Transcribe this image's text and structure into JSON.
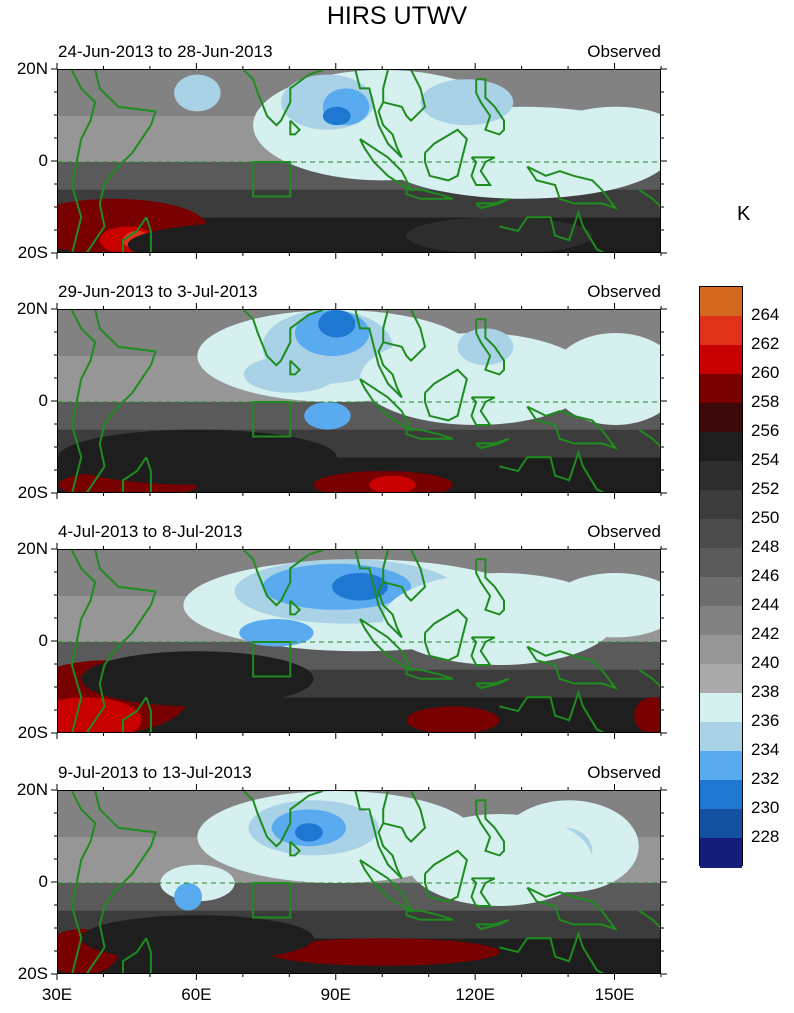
{
  "title": "HIRS UTWV",
  "panels": [
    {
      "date_range": "24-Jun-2013 to 28-Jun-2013",
      "tag": "Observed"
    },
    {
      "date_range": "29-Jun-2013 to 3-Jul-2013",
      "tag": "Observed"
    },
    {
      "date_range": "4-Jul-2013 to 8-Jul-2013",
      "tag": "Observed"
    },
    {
      "date_range": "9-Jul-2013 to 13-Jul-2013",
      "tag": "Observed"
    }
  ],
  "lat_labels": [
    "20N",
    "0",
    "20S"
  ],
  "lon_labels": [
    "30E",
    "60E",
    "90E",
    "120E",
    "150E"
  ],
  "colorbar": {
    "unit": "K",
    "levels": [
      "264",
      "262",
      "260",
      "258",
      "256",
      "254",
      "252",
      "250",
      "248",
      "246",
      "244",
      "242",
      "240",
      "238",
      "236",
      "234",
      "232",
      "230",
      "228"
    ],
    "colors": [
      "#d2691e",
      "#e0321a",
      "#c80000",
      "#780000",
      "#3c0a0a",
      "#1e1e1e",
      "#2d2d2d",
      "#3c3c3c",
      "#4b4b4b",
      "#5a5a5a",
      "#6e6e6e",
      "#828282",
      "#969696",
      "#aaaaaa",
      "#d6f0f0",
      "#aad2e6",
      "#5aaaf0",
      "#1e78d2",
      "#1450a0",
      "#141e78"
    ]
  },
  "map_colors": {
    "coast": "#1e8c1e",
    "box": "#1e8c1e",
    "equator": "#1e8c1e"
  }
}
